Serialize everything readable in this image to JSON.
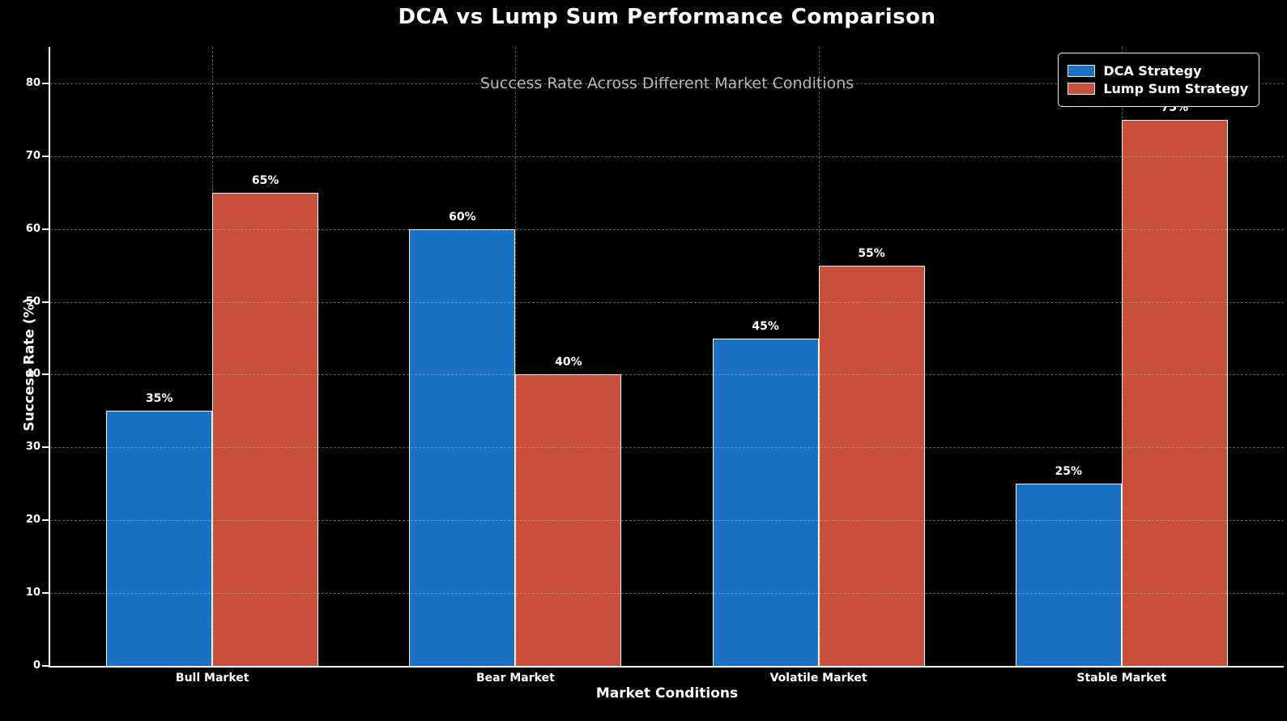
{
  "chart_data": {
    "type": "bar",
    "title": "DCA vs Lump Sum Performance Comparison",
    "subtitle": "Success Rate Across Different Market Conditions",
    "categories": [
      "Bull Market",
      "Bear Market",
      "Volatile Market",
      "Stable Market"
    ],
    "series": [
      {
        "name": "DCA Strategy",
        "color": "#1b72c4",
        "values": [
          35,
          60,
          45,
          25
        ]
      },
      {
        "name": "Lump Sum Strategy",
        "color": "#c74f3b",
        "values": [
          65,
          40,
          55,
          75
        ]
      }
    ],
    "value_labels": [
      [
        "35%",
        "60%",
        "45%",
        "25%"
      ],
      [
        "65%",
        "40%",
        "55%",
        "75%"
      ]
    ],
    "xlabel": "Market Conditions",
    "ylabel": "Success Rate (%)",
    "ylim": [
      0,
      85
    ],
    "yticks": [
      0,
      10,
      20,
      30,
      40,
      50,
      60,
      70,
      80
    ],
    "grid": "dashed, both axes",
    "legend_position": "upper right",
    "colors": {
      "background": "#000000",
      "text": "#ffffff",
      "subtitle_text": "#b9b9b9",
      "grid": "#c8c8c8",
      "axis": "#ffffff",
      "bar_edge": "#ffffff"
    }
  }
}
